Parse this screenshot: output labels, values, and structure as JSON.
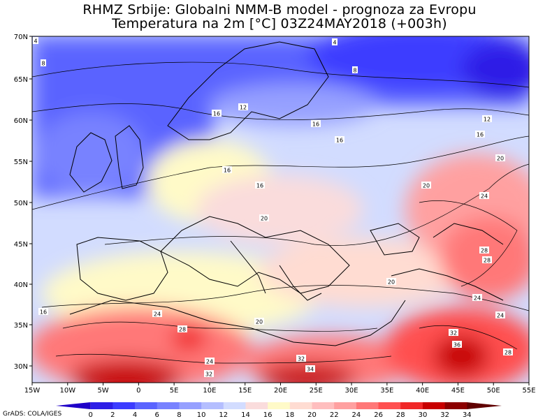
{
  "header": {
    "title_line1": "RHMZ Srbije: Globalni NMM-B model - prognoza za Evropu",
    "title_line2": "Temperatura na 2m [°C] 03Z24MAY2018 (+003h)"
  },
  "axes": {
    "lat_labels": [
      "70N",
      "65N",
      "60N",
      "55N",
      "50N",
      "45N",
      "40N",
      "35N",
      "30N"
    ],
    "lon_labels": [
      "15W",
      "10W",
      "5W",
      "0",
      "5E",
      "10E",
      "15E",
      "20E",
      "25E",
      "30E",
      "35E",
      "40E",
      "45E",
      "50E",
      "55E"
    ]
  },
  "legend": {
    "values": [
      "0",
      "2",
      "4",
      "6",
      "8",
      "10",
      "12",
      "14",
      "16",
      "18",
      "20",
      "22",
      "24",
      "26",
      "28",
      "30",
      "32",
      "34"
    ],
    "colors": [
      "#1f00c8",
      "#2d1ee6",
      "#3c3cff",
      "#5a64ff",
      "#7882ff",
      "#96a0ff",
      "#b4beff",
      "#d2dcff",
      "#fadcdc",
      "#fffac8",
      "#ffdcd2",
      "#ffbebe",
      "#ffa0a0",
      "#ff7878",
      "#ff5050",
      "#f02828",
      "#c80000",
      "#8c0000",
      "#600000"
    ]
  },
  "credit": "GrADS: COLA/IGES",
  "contour_labels": [
    {
      "text": "4"
    },
    {
      "text": "4"
    },
    {
      "text": "8"
    },
    {
      "text": "8"
    },
    {
      "text": "12"
    },
    {
      "text": "16"
    },
    {
      "text": "16"
    },
    {
      "text": "12"
    },
    {
      "text": "16"
    },
    {
      "text": "16"
    },
    {
      "text": "20"
    },
    {
      "text": "16"
    },
    {
      "text": "16"
    },
    {
      "text": "20"
    },
    {
      "text": "20"
    },
    {
      "text": "24"
    },
    {
      "text": "28"
    },
    {
      "text": "28"
    },
    {
      "text": "24"
    },
    {
      "text": "20"
    },
    {
      "text": "24"
    },
    {
      "text": "28"
    },
    {
      "text": "32"
    },
    {
      "text": "36"
    },
    {
      "text": "28"
    },
    {
      "text": "32"
    },
    {
      "text": "34"
    },
    {
      "text": "32"
    },
    {
      "text": "24"
    },
    {
      "text": "20"
    },
    {
      "text": "16"
    },
    {
      "text": "24"
    }
  ]
}
